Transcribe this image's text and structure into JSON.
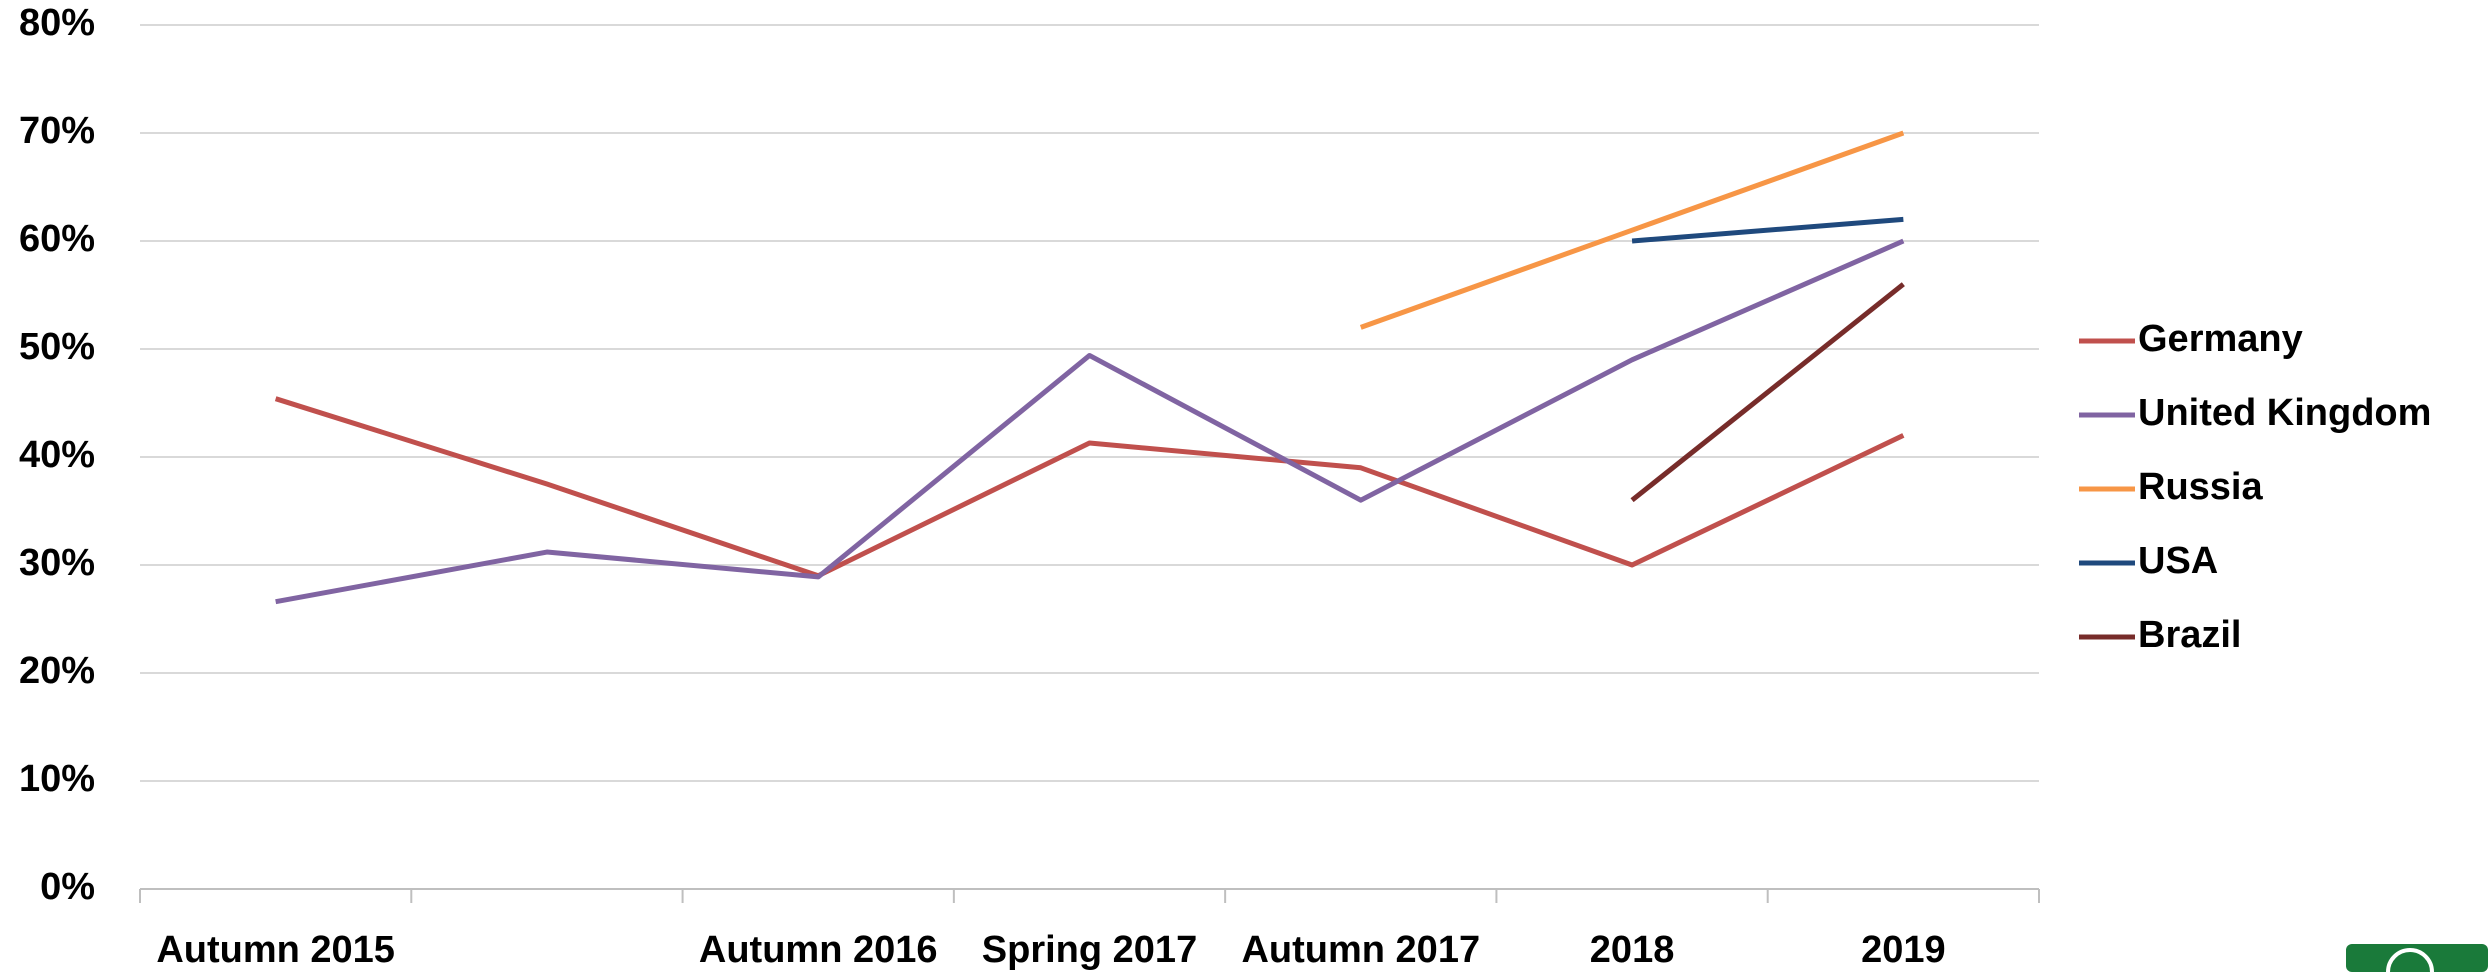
{
  "chart_data": {
    "type": "line",
    "categories": [
      "Autumn 2015",
      null,
      "Autumn 2016",
      "Spring 2017",
      "Autumn 2017",
      "2018",
      "2019"
    ],
    "series": [
      {
        "name": "Germany",
        "color": "#c0504d",
        "values": [
          45.4,
          37.5,
          29,
          41.3,
          39,
          30,
          42
        ]
      },
      {
        "name": "United Kingdom",
        "color": "#8064a2",
        "values": [
          26.6,
          31.2,
          28.9,
          49.4,
          36,
          49,
          60
        ]
      },
      {
        "name": "Russia",
        "color": "#f79646",
        "values": [
          null,
          null,
          null,
          null,
          52,
          61,
          70
        ]
      },
      {
        "name": "USA",
        "color": "#1f497d",
        "values": [
          null,
          null,
          null,
          null,
          null,
          60,
          62
        ]
      },
      {
        "name": "Brazil",
        "color": "#772c2a",
        "values": [
          null,
          null,
          null,
          null,
          null,
          36,
          56
        ]
      }
    ],
    "ylim": [
      0,
      80
    ],
    "yticks": [
      {
        "value": 0,
        "label": "0%"
      },
      {
        "value": 10,
        "label": "10%"
      },
      {
        "value": 20,
        "label": "20%"
      },
      {
        "value": 30,
        "label": "30%"
      },
      {
        "value": 40,
        "label": "40%"
      },
      {
        "value": 50,
        "label": "50%"
      },
      {
        "value": 60,
        "label": "60%"
      },
      {
        "value": 70,
        "label": "70%"
      },
      {
        "value": 80,
        "label": "80%"
      }
    ],
    "grid": true,
    "legend": "right"
  }
}
